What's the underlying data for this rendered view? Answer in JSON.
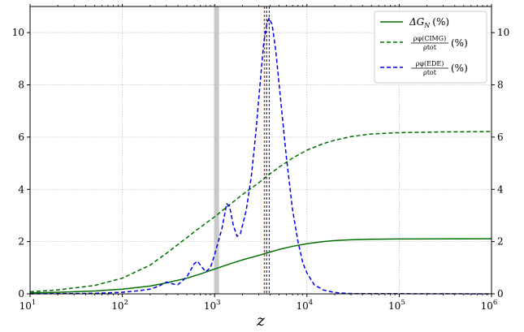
{
  "chart_data": {
    "type": "line",
    "xlabel": "z",
    "x_scale": "log",
    "xlim": [
      10,
      1000000
    ],
    "ylim": [
      0,
      11
    ],
    "secondary_y_axis": true,
    "grid": true,
    "legend_position": "top-right",
    "x_ticks": [
      {
        "base": "10",
        "exp": "1"
      },
      {
        "base": "10",
        "exp": "2"
      },
      {
        "base": "10",
        "exp": "3"
      },
      {
        "base": "10",
        "exp": "4"
      },
      {
        "base": "10",
        "exp": "5"
      },
      {
        "base": "10",
        "exp": "6"
      }
    ],
    "y_ticks": [
      0,
      2,
      4,
      6,
      8,
      10
    ],
    "legend": [
      {
        "label_main": "ΔG",
        "label_sub": "N",
        "label_suffix": "(%)"
      },
      {
        "label_num": "ρφ(CIMG)",
        "label_den": "ρtot",
        "label_suffix": "(%)"
      },
      {
        "label_num": "ρφ(EDE)",
        "label_den": "ρtot",
        "label_suffix": "(%)"
      }
    ],
    "series": [
      {
        "style": "solid",
        "color": "#007000",
        "points": [
          [
            10,
            0.04
          ],
          [
            20,
            0.06
          ],
          [
            50,
            0.11
          ],
          [
            100,
            0.18
          ],
          [
            200,
            0.3
          ],
          [
            300,
            0.42
          ],
          [
            500,
            0.6
          ],
          [
            700,
            0.76
          ],
          [
            1000,
            0.95
          ],
          [
            1500,
            1.16
          ],
          [
            2000,
            1.3
          ],
          [
            3000,
            1.47
          ],
          [
            4000,
            1.6
          ],
          [
            5000,
            1.7
          ],
          [
            7000,
            1.82
          ],
          [
            10000,
            1.92
          ],
          [
            15000,
            2
          ],
          [
            20000,
            2.04
          ],
          [
            30000,
            2.07
          ],
          [
            50000,
            2.09
          ],
          [
            100000,
            2.1
          ],
          [
            1000000,
            2.11
          ]
        ]
      },
      {
        "style": "dashed",
        "color": "#007000",
        "points": [
          [
            10,
            0.08
          ],
          [
            20,
            0.15
          ],
          [
            50,
            0.32
          ],
          [
            100,
            0.6
          ],
          [
            200,
            1.1
          ],
          [
            300,
            1.55
          ],
          [
            500,
            2.15
          ],
          [
            700,
            2.55
          ],
          [
            1000,
            2.95
          ],
          [
            1500,
            3.45
          ],
          [
            2000,
            3.8
          ],
          [
            3000,
            4.25
          ],
          [
            4000,
            4.6
          ],
          [
            5000,
            4.85
          ],
          [
            7000,
            5.2
          ],
          [
            10000,
            5.5
          ],
          [
            15000,
            5.75
          ],
          [
            20000,
            5.88
          ],
          [
            30000,
            6.02
          ],
          [
            50000,
            6.12
          ],
          [
            100000,
            6.17
          ],
          [
            300000,
            6.2
          ],
          [
            1000000,
            6.21
          ]
        ]
      },
      {
        "style": "dashed",
        "color": "#0000ee",
        "points": [
          [
            10,
            0
          ],
          [
            50,
            0.02
          ],
          [
            100,
            0.06
          ],
          [
            150,
            0.12
          ],
          [
            200,
            0.18
          ],
          [
            250,
            0.3
          ],
          [
            300,
            0.45
          ],
          [
            350,
            0.38
          ],
          [
            400,
            0.35
          ],
          [
            500,
            0.65
          ],
          [
            600,
            1.15
          ],
          [
            650,
            1.25
          ],
          [
            700,
            1.1
          ],
          [
            800,
            0.85
          ],
          [
            900,
            1.0
          ],
          [
            1000,
            1.5
          ],
          [
            1200,
            2.5
          ],
          [
            1350,
            3.45
          ],
          [
            1450,
            3.35
          ],
          [
            1600,
            2.6
          ],
          [
            1750,
            2.2
          ],
          [
            1900,
            2.3
          ],
          [
            2200,
            3.2
          ],
          [
            2500,
            4.5
          ],
          [
            2800,
            6.2
          ],
          [
            3100,
            8
          ],
          [
            3400,
            9.6
          ],
          [
            3700,
            10.4
          ],
          [
            3900,
            10.55
          ],
          [
            4200,
            10.3
          ],
          [
            4600,
            9.3
          ],
          [
            5200,
            7.4
          ],
          [
            6000,
            5.2
          ],
          [
            7000,
            3.2
          ],
          [
            8000,
            2
          ],
          [
            9000,
            1.2
          ],
          [
            10000,
            0.8
          ],
          [
            12000,
            0.35
          ],
          [
            15000,
            0.15
          ],
          [
            20000,
            0.05
          ],
          [
            30000,
            0.01
          ],
          [
            1000000,
            0
          ]
        ]
      }
    ],
    "vertical_markers": [
      {
        "x": 1050,
        "style": "band",
        "color": "#bfbfbf"
      },
      {
        "x": 3450,
        "style": "dashed",
        "color": "#c00000"
      },
      {
        "x": 3650,
        "style": "dashed",
        "color": "#000000"
      },
      {
        "x": 3900,
        "style": "dashed",
        "color": "#0000ee"
      }
    ]
  }
}
